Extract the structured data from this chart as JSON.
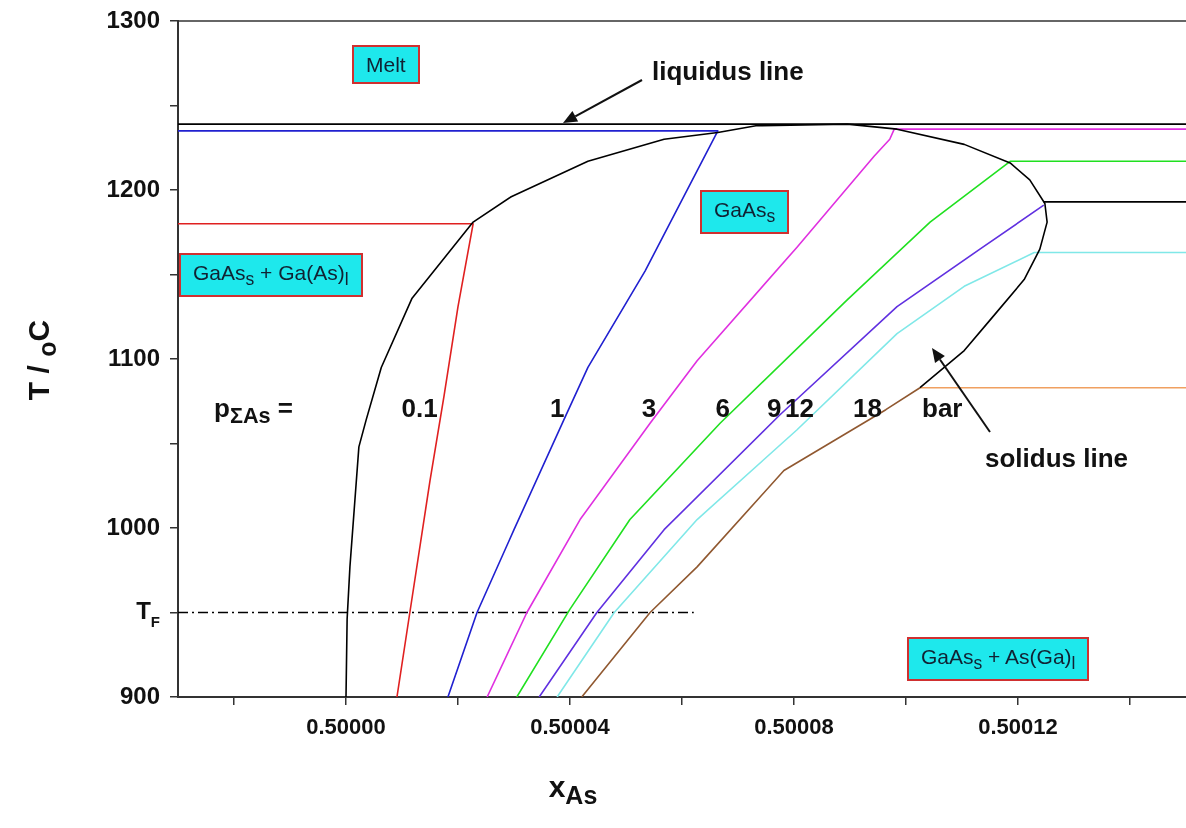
{
  "chart_data": {
    "type": "line",
    "xlabel": "x$_{As}$",
    "ylabel": "T / $_{o}$C",
    "xlim": [
      0.49997,
      0.50015
    ],
    "ylim": [
      900,
      1300
    ],
    "xticks": [
      {
        "value": 0.49998,
        "label": null
      },
      {
        "value": 0.5,
        "label": "0.50000"
      },
      {
        "value": 0.50002,
        "label": null
      },
      {
        "value": 0.50004,
        "label": "0.50004"
      },
      {
        "value": 0.50006,
        "label": null
      },
      {
        "value": 0.50008,
        "label": "0.50008"
      },
      {
        "value": 0.5001,
        "label": null
      },
      {
        "value": 0.50012,
        "label": "0.50012"
      },
      {
        "value": 0.50014,
        "label": null
      }
    ],
    "yticks": [
      900,
      {
        "value": 950,
        "label": "T$_{F}$"
      },
      1000,
      {
        "value": 1050,
        "label": null
      },
      1100,
      {
        "value": 1150,
        "label": null
      },
      1200,
      {
        "value": 1250,
        "label": null
      },
      1300
    ],
    "grid": false,
    "legend": false,
    "line_style": "solid",
    "series": [
      {
        "color": "#000000",
        "x": [
          0.5,
          0.5000002,
          0.5000007,
          0.5000023,
          0.5000036,
          0.5000063,
          0.5000118,
          0.5000227,
          0.5000295,
          0.5000432,
          0.5000568,
          0.5000664,
          0.5000732,
          0.5000895,
          0.5000984,
          0.5001104,
          0.5001186,
          0.5001221,
          0.5001248,
          0.5001252,
          0.5001239,
          0.5001211,
          0.500115,
          0.5001104,
          0.5001025
        ],
        "values": [
          900,
          946,
          977,
          1048,
          1064,
          1095,
          1136,
          1181,
          1196,
          1217,
          1230,
          1234,
          1238,
          1239,
          1236,
          1227,
          1216,
          1206,
          1192,
          1181,
          1165,
          1147,
          1123,
          1105,
          1083
        ]
      },
      {
        "name": "0.1",
        "color": "#e02020",
        "x": [
          0.5000091,
          0.5000114,
          0.500015,
          0.5000175,
          0.50002,
          0.5000227,
          0.49997
        ],
        "values": [
          900,
          950,
          1028,
          1078,
          1131,
          1180,
          1180
        ]
      },
      {
        "name": "1",
        "color": "#2020d0",
        "x": [
          0.5000182,
          0.5000234,
          0.50003,
          0.5000389,
          0.5000432,
          0.5000534,
          0.5000664,
          0.49997
        ],
        "values": [
          900,
          950,
          999,
          1064,
          1095,
          1152,
          1235,
          1235
        ]
      },
      {
        "name": "3",
        "color": "#e030e0",
        "x": [
          0.5000252,
          0.5000323,
          0.5000418,
          0.5000543,
          0.5000627,
          0.5000805,
          0.5000943,
          0.5000971,
          0.5000979,
          0.50015
        ],
        "values": [
          900,
          950,
          1005,
          1062,
          1099,
          1166,
          1220,
          1230,
          1236,
          1236
        ]
      },
      {
        "name": "6",
        "color": "#20e020",
        "x": [
          0.5000305,
          0.50004,
          0.5000507,
          0.5000668,
          0.5000895,
          0.5001043,
          0.5001186,
          0.50015
        ],
        "values": [
          900,
          952,
          1005,
          1062,
          1135,
          1181,
          1217,
          1217
        ]
      },
      {
        "name": "9",
        "color": "#6030e0",
        "x": [
          0.5000345,
          0.5000448,
          0.5000568,
          0.5000775,
          0.5000984,
          0.5001132,
          0.5001246
        ],
        "values": [
          900,
          950,
          999,
          1067,
          1131,
          1165,
          1191
        ]
      },
      {
        "color": "#000000",
        "x": [
          0.5001246,
          0.50015
        ],
        "values": [
          1193,
          1193
        ]
      },
      {
        "name": "12",
        "color": "#80e8e8",
        "x": [
          0.5000377,
          0.5000479,
          0.5000627,
          0.5000805,
          0.5000984,
          0.5001104,
          0.5001229,
          0.50015
        ],
        "values": [
          900,
          950,
          1005,
          1058,
          1115,
          1143,
          1163,
          1163
        ]
      },
      {
        "name": "18",
        "color": "#905830",
        "x": [
          0.5000421,
          0.5000543,
          0.5000627,
          0.5000782,
          0.5000964,
          0.5001025
        ],
        "values": [
          900,
          950,
          977,
          1034,
          1070,
          1083
        ]
      },
      {
        "color": "#f0a060",
        "x": [
          0.5001025,
          0.50015
        ],
        "values": [
          1083,
          1083
        ]
      },
      {
        "color": "#000000",
        "line_style": "dashed",
        "x": [
          0.49997,
          0.5000621
        ],
        "values": [
          950,
          950
        ]
      }
    ],
    "ref_lines": [
      {
        "axis": "y",
        "value": 1239,
        "color": "#000000"
      }
    ],
    "annotations": [
      "Melt",
      "GaAs$_{s}$",
      "GaAs$_{s}$ + Ga(As)$_{l}$",
      "GaAs$_{s}$ + As(Ga)$_{l}$",
      "p$_{ΣAs}$ =",
      "bar",
      "liquidus line",
      "solidus line"
    ]
  }
}
